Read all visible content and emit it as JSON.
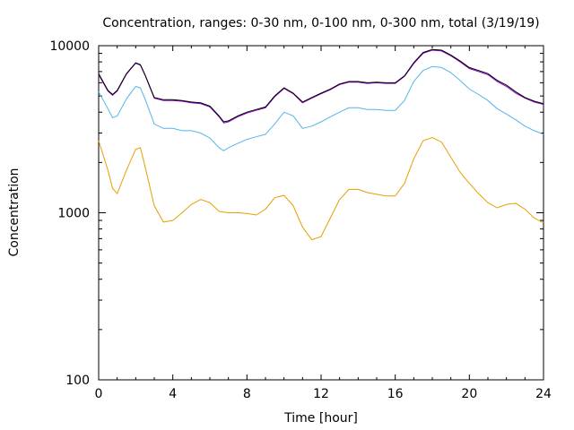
{
  "chart_data": {
    "type": "line",
    "title": "Concentration, ranges: 0-30 nm, 0-100 nm, 0-300 nm, total (3/19/19)",
    "xlabel": "Time [hour]",
    "ylabel": "Concentration",
    "xlim": [
      0,
      24
    ],
    "ylim": [
      100,
      10000
    ],
    "yscale": "log",
    "xticks": [
      0,
      4,
      8,
      12,
      16,
      20,
      24
    ],
    "yticks": [
      100,
      1000,
      10000
    ],
    "grid": false,
    "legend": "none",
    "x": [
      0,
      0.5,
      0.75,
      1,
      1.5,
      2,
      2.25,
      2.5,
      3,
      3.5,
      4,
      4.5,
      5,
      5.5,
      6,
      6.5,
      6.75,
      7,
      7.5,
      8,
      8.5,
      9,
      9.5,
      10,
      10.5,
      11,
      11.5,
      12,
      12.5,
      13,
      13.5,
      14,
      14.5,
      15,
      15.5,
      16,
      16.5,
      17,
      17.5,
      18,
      18.5,
      19,
      19.5,
      20,
      20.5,
      21,
      21.5,
      22,
      22.5,
      23,
      23.5,
      24
    ],
    "series": [
      {
        "color": "#000000",
        "values": [
          6800,
          5400,
          5100,
          5400,
          6800,
          7900,
          7700,
          6700,
          4900,
          4750,
          4750,
          4700,
          4600,
          4550,
          4350,
          3800,
          3500,
          3550,
          3800,
          4000,
          4150,
          4300,
          5000,
          5600,
          5200,
          4600,
          4900,
          5200,
          5500,
          5900,
          6100,
          6100,
          6000,
          6050,
          6000,
          6000,
          6600,
          7900,
          9100,
          9500,
          9400,
          8800,
          8100,
          7400,
          7100,
          6800,
          6200,
          5800,
          5300,
          4900,
          4650,
          4500
        ]
      },
      {
        "color": "#9400d3",
        "values": [
          6700,
          5350,
          5050,
          5350,
          6750,
          7850,
          7650,
          6650,
          4850,
          4700,
          4700,
          4650,
          4550,
          4500,
          4300,
          3750,
          3450,
          3500,
          3750,
          3950,
          4100,
          4250,
          4950,
          5550,
          5150,
          4550,
          4850,
          5150,
          5450,
          5850,
          6050,
          6050,
          5950,
          6000,
          5950,
          5950,
          6550,
          7800,
          9000,
          9400,
          9300,
          8700,
          8000,
          7300,
          7000,
          6700,
          6100,
          5700,
          5200,
          4850,
          4600,
          4450
        ]
      },
      {
        "color": "#56b4e9",
        "values": [
          5300,
          4200,
          3700,
          3800,
          4800,
          5700,
          5600,
          4800,
          3400,
          3200,
          3200,
          3100,
          3100,
          3000,
          2800,
          2450,
          2350,
          2450,
          2600,
          2750,
          2850,
          2950,
          3400,
          4000,
          3800,
          3200,
          3300,
          3500,
          3750,
          4000,
          4250,
          4250,
          4150,
          4150,
          4100,
          4100,
          4700,
          6100,
          7100,
          7500,
          7400,
          6900,
          6200,
          5500,
          5100,
          4700,
          4200,
          3900,
          3600,
          3300,
          3100,
          2950
        ]
      },
      {
        "color": "#e69f00",
        "values": [
          2700,
          1800,
          1400,
          1300,
          1800,
          2400,
          2450,
          1900,
          1100,
          880,
          900,
          1000,
          1120,
          1200,
          1150,
          1020,
          1010,
          1000,
          1000,
          990,
          970,
          1050,
          1230,
          1270,
          1100,
          820,
          690,
          720,
          930,
          1200,
          1380,
          1380,
          1320,
          1290,
          1260,
          1260,
          1500,
          2100,
          2700,
          2820,
          2650,
          2150,
          1750,
          1500,
          1300,
          1150,
          1070,
          1120,
          1140,
          1050,
          930,
          870
        ]
      }
    ]
  }
}
